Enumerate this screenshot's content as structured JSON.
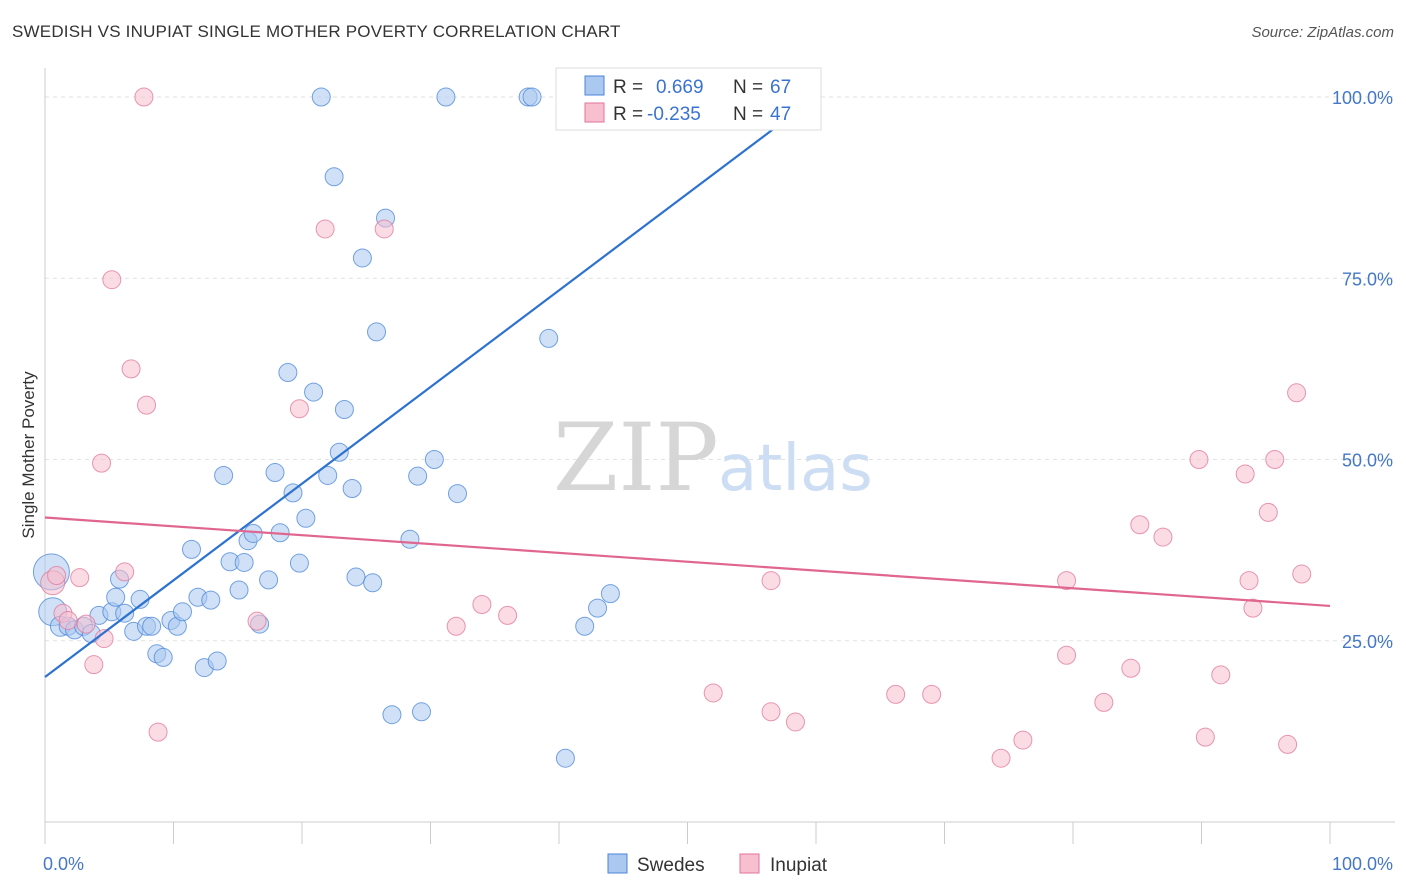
{
  "title": "SWEDISH VS INUPIAT SINGLE MOTHER POVERTY CORRELATION CHART",
  "source": "Source: ZipAtlas.com",
  "watermark": {
    "zip": "ZIP",
    "atlas": "atlas"
  },
  "legend": {
    "r_label": "R =",
    "n_label": "N =",
    "rows": [
      {
        "r": "0.669",
        "n": "67"
      },
      {
        "r": "-0.235",
        "n": "47"
      }
    ]
  },
  "chart_data": {
    "type": "scatter",
    "title": "SWEDISH VS INUPIAT SINGLE MOTHER POVERTY CORRELATION CHART",
    "xlabel": "",
    "ylabel": "Single Mother Poverty",
    "xlim": [
      0,
      100
    ],
    "ylim": [
      0,
      102
    ],
    "x_ticks": [
      {
        "value": 0,
        "label": "0.0%"
      },
      {
        "value": 100,
        "label": "100.0%"
      }
    ],
    "y_ticks": [
      {
        "value": 25,
        "label": "25.0%"
      },
      {
        "value": 50,
        "label": "50.0%"
      },
      {
        "value": 75,
        "label": "75.0%"
      },
      {
        "value": 100,
        "label": "100.0%"
      }
    ],
    "grid": "horizontal dashed",
    "legend_position": "top-center",
    "series": [
      {
        "name": "Swedes",
        "color": "#4a86d8",
        "fill": "#aac8f0",
        "r": 0.669,
        "n": 67,
        "trend": {
          "x": [
            0,
            60
          ],
          "y": [
            20,
            100
          ]
        },
        "points": [
          [
            0.5,
            34.5,
            18
          ],
          [
            0.6,
            29,
            14
          ],
          [
            1.2,
            27,
            10
          ],
          [
            1.8,
            27,
            9
          ],
          [
            2.3,
            26.5,
            9
          ],
          [
            3.0,
            27,
            9
          ],
          [
            3.6,
            26,
            9
          ],
          [
            4.2,
            28.5,
            9
          ],
          [
            5.2,
            29,
            9
          ],
          [
            5.5,
            31,
            9
          ],
          [
            5.8,
            33.5,
            9
          ],
          [
            6.2,
            28.8,
            9
          ],
          [
            6.9,
            26.3,
            9
          ],
          [
            7.4,
            30.7,
            9
          ],
          [
            7.9,
            27,
            9
          ],
          [
            8.3,
            27,
            9
          ],
          [
            8.7,
            23.2,
            9
          ],
          [
            9.2,
            22.7,
            9
          ],
          [
            9.8,
            27.8,
            9
          ],
          [
            10.3,
            27,
            9
          ],
          [
            10.7,
            29,
            9
          ],
          [
            11.4,
            37.6,
            9
          ],
          [
            11.9,
            31,
            9
          ],
          [
            12.4,
            21.3,
            9
          ],
          [
            12.9,
            30.6,
            9
          ],
          [
            13.4,
            22.2,
            9
          ],
          [
            13.9,
            47.8,
            9
          ],
          [
            14.4,
            35.9,
            9
          ],
          [
            15.1,
            32,
            9
          ],
          [
            15.5,
            35.8,
            9
          ],
          [
            15.8,
            38.8,
            9
          ],
          [
            16.2,
            39.8,
            9
          ],
          [
            16.7,
            27.3,
            9
          ],
          [
            17.4,
            33.4,
            9
          ],
          [
            17.9,
            48.2,
            9
          ],
          [
            18.3,
            39.9,
            9
          ],
          [
            18.9,
            62.0,
            9
          ],
          [
            19.3,
            45.4,
            9
          ],
          [
            19.8,
            35.7,
            9
          ],
          [
            20.3,
            41.9,
            9
          ],
          [
            20.9,
            59.3,
            9
          ],
          [
            21.5,
            100,
            9
          ],
          [
            22.0,
            47.8,
            9
          ],
          [
            22.5,
            89.0,
            9
          ],
          [
            22.9,
            51.0,
            9
          ],
          [
            23.3,
            56.9,
            9
          ],
          [
            23.9,
            46.0,
            9
          ],
          [
            24.2,
            33.8,
            9
          ],
          [
            24.7,
            77.8,
            9
          ],
          [
            25.5,
            33.0,
            9
          ],
          [
            25.8,
            67.6,
            9
          ],
          [
            26.5,
            83.3,
            9
          ],
          [
            27.0,
            14.8,
            9
          ],
          [
            28.4,
            39.0,
            9
          ],
          [
            29.0,
            47.7,
            9
          ],
          [
            29.3,
            15.2,
            9
          ],
          [
            30.3,
            50.0,
            9
          ],
          [
            31.2,
            100,
            9
          ],
          [
            32.1,
            45.3,
            9
          ],
          [
            37.6,
            100,
            9
          ],
          [
            37.9,
            100,
            9
          ],
          [
            39.2,
            66.7,
            9
          ],
          [
            40.5,
            8.8,
            9
          ],
          [
            42.0,
            27.0,
            9
          ],
          [
            43.0,
            29.5,
            9
          ],
          [
            44.0,
            31.5,
            9
          ],
          [
            45.5,
            100,
            9
          ]
        ]
      },
      {
        "name": "Inupiat",
        "color": "#e07598",
        "fill": "#f7bfd0",
        "r": -0.235,
        "n": 47,
        "trend": {
          "x": [
            0,
            100
          ],
          "y": [
            42.0,
            29.8
          ]
        },
        "points": [
          [
            0.6,
            33.0,
            12
          ],
          [
            0.9,
            34.0,
            9
          ],
          [
            1.4,
            28.8,
            9
          ],
          [
            1.8,
            27.8,
            9
          ],
          [
            2.7,
            33.7,
            9
          ],
          [
            3.2,
            27.3,
            9
          ],
          [
            3.8,
            21.7,
            9
          ],
          [
            4.4,
            49.5,
            9
          ],
          [
            4.6,
            25.3,
            9
          ],
          [
            5.2,
            74.8,
            9
          ],
          [
            6.2,
            34.5,
            9
          ],
          [
            6.7,
            62.5,
            9
          ],
          [
            7.7,
            100,
            9
          ],
          [
            7.9,
            57.5,
            9
          ],
          [
            8.8,
            12.4,
            9
          ],
          [
            16.5,
            27.7,
            9
          ],
          [
            19.8,
            57.0,
            9
          ],
          [
            21.8,
            81.8,
            9
          ],
          [
            26.4,
            81.8,
            9
          ],
          [
            32.0,
            27.0,
            9
          ],
          [
            34.0,
            30.0,
            9
          ],
          [
            36.0,
            28.5,
            9
          ],
          [
            52.0,
            17.8,
            9
          ],
          [
            56.5,
            33.3,
            9
          ],
          [
            56.5,
            15.2,
            9
          ],
          [
            58.4,
            13.8,
            9
          ],
          [
            66.2,
            17.6,
            9
          ],
          [
            69.0,
            17.6,
            9
          ],
          [
            74.4,
            8.8,
            9
          ],
          [
            76.1,
            11.3,
            9
          ],
          [
            79.5,
            33.3,
            9
          ],
          [
            79.5,
            23.0,
            9
          ],
          [
            82.4,
            16.5,
            9
          ],
          [
            84.5,
            21.2,
            9
          ],
          [
            85.2,
            41.0,
            9
          ],
          [
            87.0,
            39.3,
            9
          ],
          [
            89.8,
            50.0,
            9
          ],
          [
            90.3,
            11.7,
            9
          ],
          [
            91.5,
            20.3,
            9
          ],
          [
            93.4,
            48.0,
            9
          ],
          [
            93.7,
            33.3,
            9
          ],
          [
            94.0,
            29.5,
            9
          ],
          [
            95.2,
            42.7,
            9
          ],
          [
            95.7,
            50.0,
            9
          ],
          [
            96.7,
            10.7,
            9
          ],
          [
            97.4,
            59.2,
            9
          ],
          [
            97.8,
            34.2,
            9
          ]
        ]
      }
    ]
  }
}
